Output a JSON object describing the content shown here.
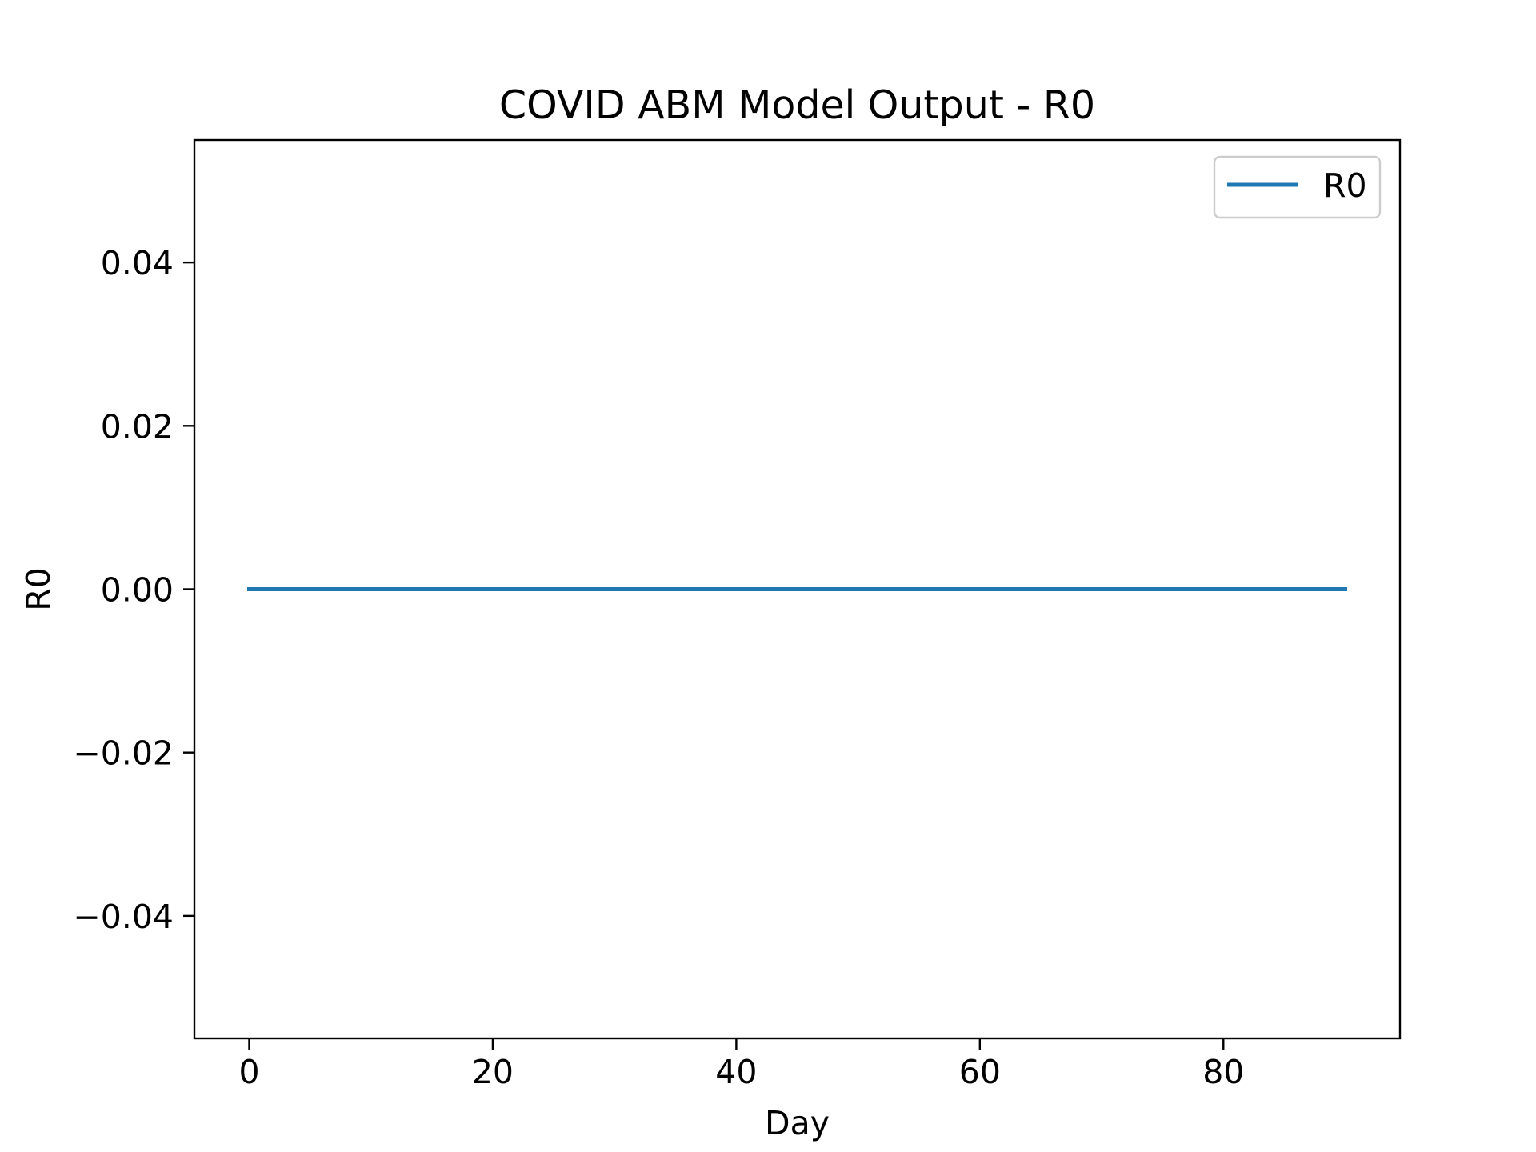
{
  "chart_data": {
    "type": "line",
    "title": "COVID ABM Model Output - R0",
    "xlabel": "Day",
    "ylabel": "R0",
    "xlim": [
      -4.5,
      94.5
    ],
    "ylim": [
      -0.055,
      0.055
    ],
    "x_ticks": [
      0,
      20,
      40,
      60,
      80
    ],
    "x_tick_labels": [
      "0",
      "20",
      "40",
      "60",
      "80"
    ],
    "y_ticks": [
      -0.04,
      -0.02,
      0.0,
      0.02,
      0.04
    ],
    "y_tick_labels": [
      "−0.04",
      "−0.02",
      "0.00",
      "0.02",
      "0.04"
    ],
    "grid": false,
    "legend_position": "top-right",
    "series": [
      {
        "name": "R0",
        "color": "#1f77b4",
        "x": [
          0,
          90
        ],
        "y": [
          0,
          0
        ]
      }
    ]
  }
}
